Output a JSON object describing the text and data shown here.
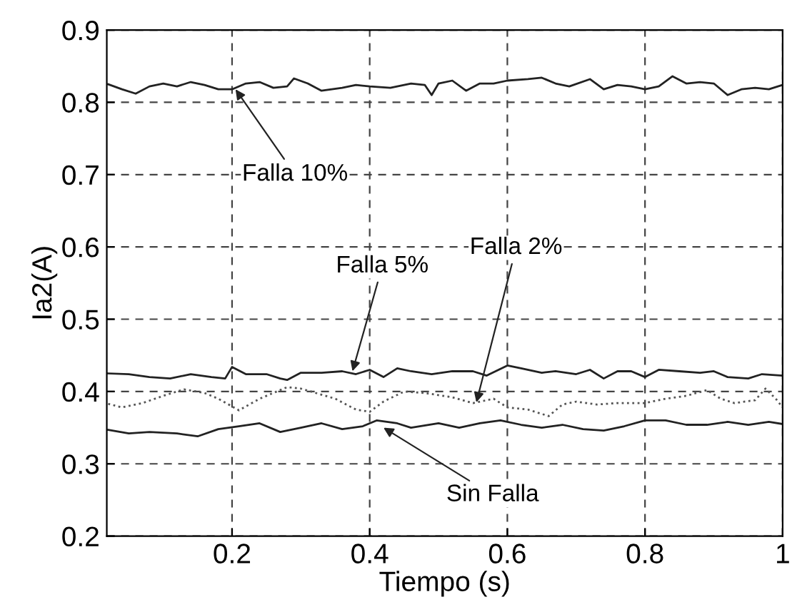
{
  "chart_data": {
    "type": "line",
    "xlabel": "Tiempo (s)",
    "ylabel": "Ia2(A)",
    "xlim": [
      0.018,
      1
    ],
    "ylim": [
      0.2,
      0.9
    ],
    "xticks": [
      0.2,
      0.4,
      0.6,
      0.8,
      1
    ],
    "yticks": [
      0.2,
      0.3,
      0.4,
      0.5,
      0.6,
      0.7,
      0.8,
      0.9
    ],
    "grid": true,
    "legend": false,
    "series": [
      {
        "color": "#222222",
        "line_style": "solid",
        "x": [
          0.02,
          0.04,
          0.06,
          0.08,
          0.1,
          0.12,
          0.14,
          0.16,
          0.18,
          0.2,
          0.22,
          0.24,
          0.26,
          0.28,
          0.29,
          0.31,
          0.33,
          0.36,
          0.38,
          0.4,
          0.43,
          0.46,
          0.48,
          0.49,
          0.5,
          0.52,
          0.54,
          0.56,
          0.58,
          0.6,
          0.63,
          0.65,
          0.67,
          0.69,
          0.72,
          0.74,
          0.76,
          0.78,
          0.8,
          0.82,
          0.84,
          0.86,
          0.88,
          0.9,
          0.92,
          0.94,
          0.96,
          0.98,
          1.0
        ],
        "values": [
          0.825,
          0.818,
          0.812,
          0.822,
          0.826,
          0.822,
          0.828,
          0.824,
          0.818,
          0.818,
          0.826,
          0.828,
          0.82,
          0.822,
          0.833,
          0.826,
          0.816,
          0.82,
          0.824,
          0.822,
          0.82,
          0.826,
          0.824,
          0.81,
          0.826,
          0.83,
          0.816,
          0.826,
          0.826,
          0.83,
          0.832,
          0.834,
          0.826,
          0.822,
          0.832,
          0.818,
          0.824,
          0.822,
          0.818,
          0.822,
          0.836,
          0.826,
          0.828,
          0.826,
          0.81,
          0.818,
          0.82,
          0.818,
          0.824
        ]
      },
      {
        "color": "#222222",
        "line_style": "solid",
        "x": [
          0.02,
          0.05,
          0.08,
          0.11,
          0.14,
          0.17,
          0.19,
          0.2,
          0.22,
          0.25,
          0.27,
          0.28,
          0.3,
          0.33,
          0.36,
          0.38,
          0.4,
          0.42,
          0.44,
          0.46,
          0.49,
          0.52,
          0.55,
          0.57,
          0.6,
          0.62,
          0.65,
          0.67,
          0.7,
          0.72,
          0.74,
          0.76,
          0.78,
          0.8,
          0.82,
          0.85,
          0.88,
          0.9,
          0.92,
          0.95,
          0.97,
          1.0
        ],
        "values": [
          0.425,
          0.424,
          0.42,
          0.418,
          0.424,
          0.42,
          0.418,
          0.434,
          0.424,
          0.424,
          0.418,
          0.416,
          0.426,
          0.426,
          0.428,
          0.424,
          0.43,
          0.42,
          0.432,
          0.428,
          0.424,
          0.428,
          0.428,
          0.422,
          0.436,
          0.432,
          0.426,
          0.428,
          0.424,
          0.43,
          0.418,
          0.428,
          0.428,
          0.42,
          0.43,
          0.428,
          0.426,
          0.428,
          0.42,
          0.418,
          0.424,
          0.422
        ]
      },
      {
        "color": "#555555",
        "line_style": "dotted",
        "x": [
          0.02,
          0.04,
          0.07,
          0.1,
          0.13,
          0.16,
          0.18,
          0.21,
          0.24,
          0.26,
          0.28,
          0.3,
          0.35,
          0.38,
          0.4,
          0.42,
          0.45,
          0.48,
          0.52,
          0.55,
          0.58,
          0.6,
          0.63,
          0.66,
          0.68,
          0.7,
          0.73,
          0.76,
          0.8,
          0.83,
          0.86,
          0.89,
          0.91,
          0.93,
          0.96,
          0.975,
          0.99,
          1.0
        ],
        "values": [
          0.383,
          0.378,
          0.384,
          0.394,
          0.403,
          0.398,
          0.39,
          0.374,
          0.39,
          0.398,
          0.406,
          0.404,
          0.39,
          0.375,
          0.372,
          0.386,
          0.4,
          0.398,
          0.392,
          0.384,
          0.39,
          0.378,
          0.375,
          0.366,
          0.382,
          0.386,
          0.382,
          0.384,
          0.384,
          0.39,
          0.394,
          0.402,
          0.39,
          0.384,
          0.388,
          0.404,
          0.39,
          0.378
        ]
      },
      {
        "color": "#222222",
        "line_style": "solid",
        "x": [
          0.02,
          0.05,
          0.08,
          0.12,
          0.15,
          0.18,
          0.21,
          0.24,
          0.27,
          0.3,
          0.33,
          0.36,
          0.39,
          0.41,
          0.44,
          0.46,
          0.5,
          0.53,
          0.56,
          0.59,
          0.62,
          0.65,
          0.68,
          0.71,
          0.74,
          0.77,
          0.8,
          0.83,
          0.86,
          0.89,
          0.92,
          0.95,
          0.98,
          1.0
        ],
        "values": [
          0.347,
          0.342,
          0.344,
          0.342,
          0.338,
          0.348,
          0.352,
          0.356,
          0.344,
          0.35,
          0.356,
          0.348,
          0.352,
          0.36,
          0.356,
          0.35,
          0.356,
          0.35,
          0.356,
          0.36,
          0.354,
          0.35,
          0.354,
          0.348,
          0.346,
          0.352,
          0.36,
          0.36,
          0.354,
          0.354,
          0.358,
          0.354,
          0.358,
          0.355
        ]
      }
    ],
    "annotations": [
      {
        "text": "Falla 10%",
        "x": 0.205,
        "y": 0.818
      },
      {
        "text": "Falla 5%",
        "x": 0.375,
        "y": 0.428
      },
      {
        "text": "Falla 2%",
        "x": 0.555,
        "y": 0.385
      },
      {
        "text": "Sin Falla",
        "x": 0.42,
        "y": 0.35
      }
    ]
  }
}
